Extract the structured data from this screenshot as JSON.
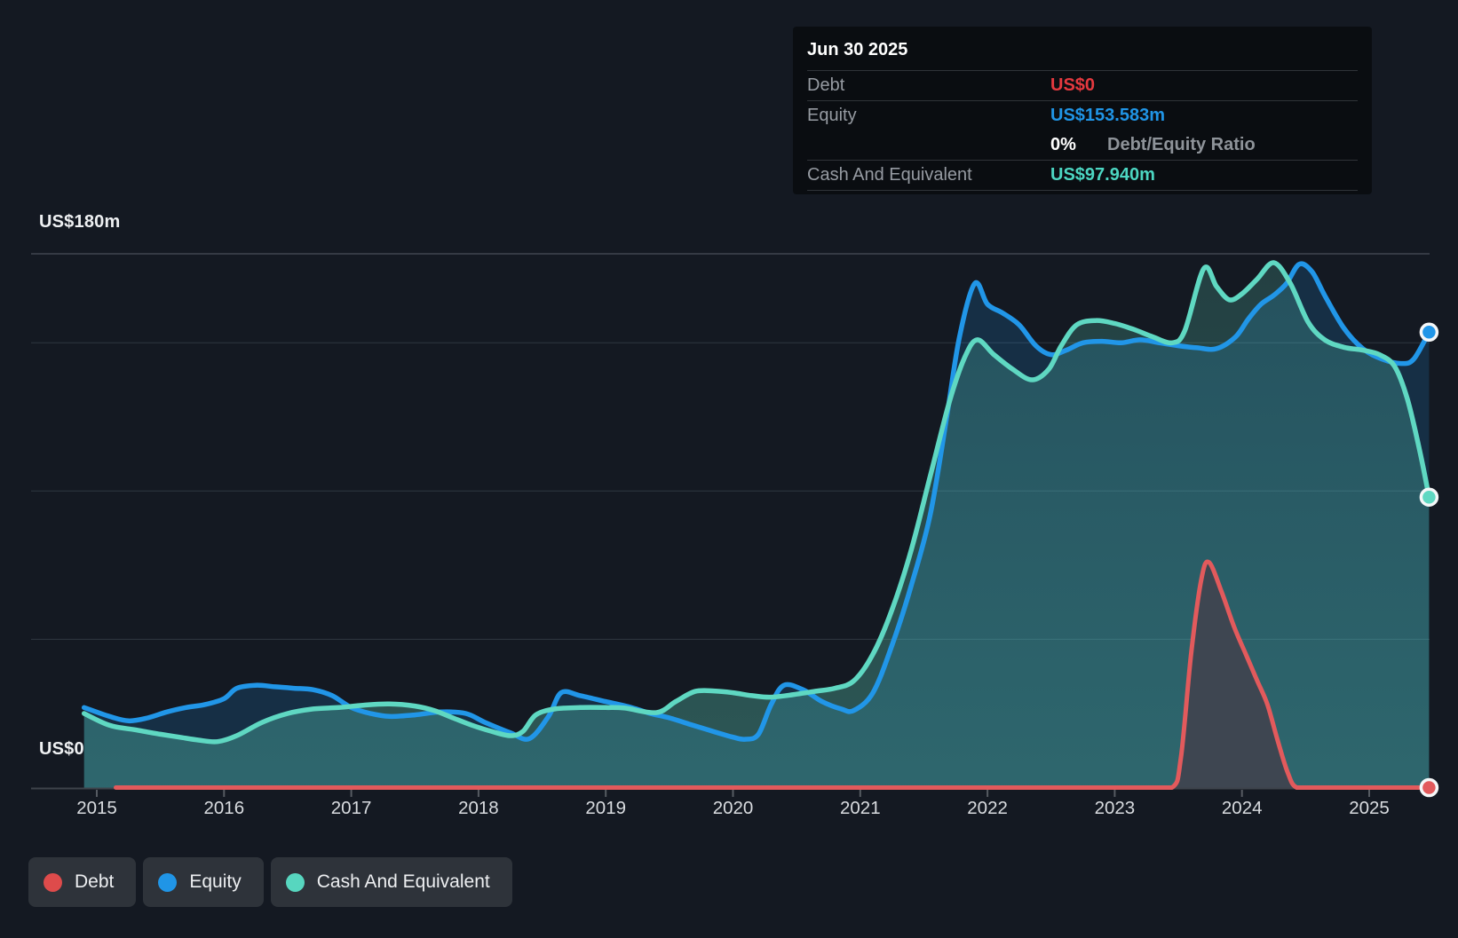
{
  "y_axis": {
    "top_label": "US$180m",
    "zero_label": "US$0"
  },
  "x_axis": {
    "ticks": [
      "2015",
      "2016",
      "2017",
      "2018",
      "2019",
      "2020",
      "2021",
      "2022",
      "2023",
      "2024",
      "2025"
    ]
  },
  "tooltip": {
    "date": "Jun 30 2025",
    "debt_label": "Debt",
    "debt_value": "US$0",
    "debt_color": "#e5393f",
    "equity_label": "Equity",
    "equity_value": "US$153.583m",
    "equity_color": "#2095e6",
    "ratio_value": "0%",
    "ratio_value_color": "#ffffff",
    "ratio_label": "Debt/Equity Ratio",
    "cash_label": "Cash And Equivalent",
    "cash_value": "US$97.940m",
    "cash_color": "#4cd6c2"
  },
  "legend": {
    "items": [
      {
        "id": "debt",
        "label": "Debt",
        "color": "#de4b4b"
      },
      {
        "id": "equity",
        "label": "Equity",
        "color": "#2095e6"
      },
      {
        "id": "cash",
        "label": "Cash And Equivalent",
        "color": "#57d6bf"
      }
    ]
  },
  "chart_data": {
    "type": "area",
    "x_ticks": [
      2015,
      2016,
      2017,
      2018,
      2019,
      2020,
      2021,
      2022,
      2023,
      2024,
      2025
    ],
    "x_range": [
      2014.9,
      2025.5
    ],
    "ylim": [
      0,
      180
    ],
    "y_gridlines": [
      180,
      150,
      100,
      50
    ],
    "y_gridline_labels": {
      "180": "US$180m",
      "0": "US$0"
    },
    "grid": true,
    "legend_position": "bottom-left",
    "last_point_date": "Jun 30 2025",
    "series": [
      {
        "name": "Debt",
        "color": "#e25a5c",
        "fill": "#3f4551",
        "end_value": 0,
        "points": [
          [
            2015.15,
            0
          ],
          [
            2016,
            0
          ],
          [
            2017,
            0
          ],
          [
            2018,
            0
          ],
          [
            2019,
            0
          ],
          [
            2020,
            0
          ],
          [
            2021,
            0
          ],
          [
            2022,
            0
          ],
          [
            2022.8,
            0
          ],
          [
            2023.2,
            0
          ],
          [
            2023.45,
            0
          ],
          [
            2023.52,
            10
          ],
          [
            2023.6,
            45
          ],
          [
            2023.68,
            70
          ],
          [
            2023.74,
            76
          ],
          [
            2023.84,
            66
          ],
          [
            2023.94,
            54
          ],
          [
            2024.03,
            45
          ],
          [
            2024.12,
            36
          ],
          [
            2024.2,
            28
          ],
          [
            2024.28,
            16
          ],
          [
            2024.36,
            5
          ],
          [
            2024.43,
            0
          ],
          [
            2024.6,
            0
          ],
          [
            2024.8,
            0
          ],
          [
            2025.0,
            0
          ],
          [
            2025.2,
            0
          ],
          [
            2025.47,
            0
          ]
        ]
      },
      {
        "name": "Equity",
        "color": "#2196e8",
        "fill": "rgba(35,150,232,0.18)",
        "end_value": 153.583,
        "points": [
          [
            2014.9,
            27
          ],
          [
            2015.1,
            24
          ],
          [
            2015.25,
            22.5
          ],
          [
            2015.4,
            23.5
          ],
          [
            2015.55,
            25.5
          ],
          [
            2015.7,
            27
          ],
          [
            2015.85,
            28
          ],
          [
            2016.0,
            30
          ],
          [
            2016.1,
            33.5
          ],
          [
            2016.25,
            34.5
          ],
          [
            2016.4,
            34
          ],
          [
            2016.55,
            33.5
          ],
          [
            2016.7,
            33
          ],
          [
            2016.85,
            31
          ],
          [
            2017.0,
            27
          ],
          [
            2017.15,
            25
          ],
          [
            2017.3,
            24
          ],
          [
            2017.5,
            24.5
          ],
          [
            2017.7,
            25.5
          ],
          [
            2017.9,
            25
          ],
          [
            2018.05,
            22
          ],
          [
            2018.25,
            18.5
          ],
          [
            2018.4,
            16.5
          ],
          [
            2018.55,
            24
          ],
          [
            2018.65,
            32
          ],
          [
            2018.8,
            31
          ],
          [
            2019.0,
            29
          ],
          [
            2019.2,
            27
          ],
          [
            2019.35,
            25
          ],
          [
            2019.5,
            23.5
          ],
          [
            2019.65,
            21.5
          ],
          [
            2019.8,
            19.5
          ],
          [
            2020.0,
            17
          ],
          [
            2020.1,
            16.3
          ],
          [
            2020.2,
            18
          ],
          [
            2020.3,
            28
          ],
          [
            2020.4,
            34.5
          ],
          [
            2020.55,
            33
          ],
          [
            2020.7,
            29
          ],
          [
            2020.85,
            26.5
          ],
          [
            2020.95,
            26
          ],
          [
            2021.1,
            32
          ],
          [
            2021.25,
            48
          ],
          [
            2021.4,
            68
          ],
          [
            2021.55,
            92
          ],
          [
            2021.68,
            125
          ],
          [
            2021.78,
            152
          ],
          [
            2021.9,
            170
          ],
          [
            2022.0,
            163
          ],
          [
            2022.12,
            160
          ],
          [
            2022.25,
            156
          ],
          [
            2022.38,
            149
          ],
          [
            2022.5,
            146
          ],
          [
            2022.62,
            147.5
          ],
          [
            2022.75,
            150
          ],
          [
            2022.9,
            150.5
          ],
          [
            2023.05,
            150
          ],
          [
            2023.2,
            151
          ],
          [
            2023.35,
            150
          ],
          [
            2023.5,
            149
          ],
          [
            2023.65,
            148.3
          ],
          [
            2023.8,
            148
          ],
          [
            2023.95,
            152
          ],
          [
            2024.05,
            158
          ],
          [
            2024.15,
            163
          ],
          [
            2024.25,
            166
          ],
          [
            2024.35,
            170
          ],
          [
            2024.45,
            176.5
          ],
          [
            2024.55,
            174
          ],
          [
            2024.65,
            166
          ],
          [
            2024.8,
            155
          ],
          [
            2024.95,
            148
          ],
          [
            2025.1,
            144.5
          ],
          [
            2025.25,
            143
          ],
          [
            2025.35,
            144.5
          ],
          [
            2025.47,
            153.583
          ]
        ]
      },
      {
        "name": "Cash And Equivalent",
        "color": "#5fd8c2",
        "fill": "gradient-teal",
        "end_value": 97.94,
        "points": [
          [
            2014.9,
            25
          ],
          [
            2015.1,
            21
          ],
          [
            2015.3,
            19.5
          ],
          [
            2015.5,
            18
          ],
          [
            2015.65,
            17
          ],
          [
            2015.8,
            16
          ],
          [
            2015.95,
            15.5
          ],
          [
            2016.1,
            17.5
          ],
          [
            2016.3,
            22
          ],
          [
            2016.5,
            25
          ],
          [
            2016.7,
            26.5
          ],
          [
            2016.9,
            27
          ],
          [
            2017.1,
            27.8
          ],
          [
            2017.3,
            28.2
          ],
          [
            2017.5,
            27.5
          ],
          [
            2017.65,
            26
          ],
          [
            2017.8,
            23.5
          ],
          [
            2017.95,
            21
          ],
          [
            2018.1,
            19
          ],
          [
            2018.25,
            17.5
          ],
          [
            2018.35,
            19
          ],
          [
            2018.45,
            24.5
          ],
          [
            2018.6,
            26.5
          ],
          [
            2018.8,
            27
          ],
          [
            2019.0,
            27
          ],
          [
            2019.15,
            26.8
          ],
          [
            2019.4,
            25.3
          ],
          [
            2019.55,
            29
          ],
          [
            2019.7,
            32.4
          ],
          [
            2019.85,
            32.6
          ],
          [
            2020.0,
            32
          ],
          [
            2020.15,
            31
          ],
          [
            2020.3,
            30.5
          ],
          [
            2020.5,
            31.5
          ],
          [
            2020.65,
            32.5
          ],
          [
            2020.8,
            33.5
          ],
          [
            2020.95,
            36
          ],
          [
            2021.1,
            45
          ],
          [
            2021.25,
            60
          ],
          [
            2021.4,
            80
          ],
          [
            2021.55,
            105
          ],
          [
            2021.7,
            130
          ],
          [
            2021.82,
            145
          ],
          [
            2021.92,
            151
          ],
          [
            2022.05,
            146
          ],
          [
            2022.2,
            141
          ],
          [
            2022.35,
            137.5
          ],
          [
            2022.48,
            141
          ],
          [
            2022.58,
            149
          ],
          [
            2022.7,
            156
          ],
          [
            2022.85,
            157.5
          ],
          [
            2023.0,
            156.5
          ],
          [
            2023.15,
            154.5
          ],
          [
            2023.3,
            152
          ],
          [
            2023.45,
            150
          ],
          [
            2023.55,
            154
          ],
          [
            2023.7,
            175
          ],
          [
            2023.8,
            169
          ],
          [
            2023.9,
            164.5
          ],
          [
            2024.0,
            166.5
          ],
          [
            2024.12,
            171.5
          ],
          [
            2024.25,
            177
          ],
          [
            2024.38,
            170
          ],
          [
            2024.52,
            157
          ],
          [
            2024.65,
            151
          ],
          [
            2024.8,
            148.5
          ],
          [
            2024.95,
            147.5
          ],
          [
            2025.08,
            146
          ],
          [
            2025.2,
            142
          ],
          [
            2025.3,
            131
          ],
          [
            2025.4,
            113
          ],
          [
            2025.47,
            97.94
          ]
        ]
      }
    ]
  }
}
